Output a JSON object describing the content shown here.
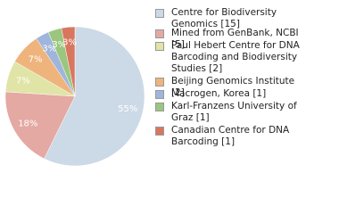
{
  "chart_data": {
    "type": "pie",
    "categories": [
      "Centre for Biodiversity Genomics [15]",
      "Mined from GenBank, NCBI [5]",
      "Paul Hebert Centre for DNA Barcoding and Biodiversity Studies [2]",
      "Beijing Genomics Institute [2]",
      "Macrogen, Korea [1]",
      "Karl-Franzens University of Graz [1]",
      "Canadian Centre for DNA Barcoding [1]"
    ],
    "values": [
      55,
      18,
      7,
      7,
      3,
      3,
      3
    ],
    "value_labels": [
      "55%",
      "18%",
      "7%",
      "7%",
      "3%",
      "3%",
      "3%"
    ],
    "colors": [
      "#ccd9e6",
      "#e3a9a2",
      "#e0e4a6",
      "#eeb47c",
      "#9fb5dc",
      "#9ac67e",
      "#d9765f"
    ],
    "legend": "right"
  }
}
